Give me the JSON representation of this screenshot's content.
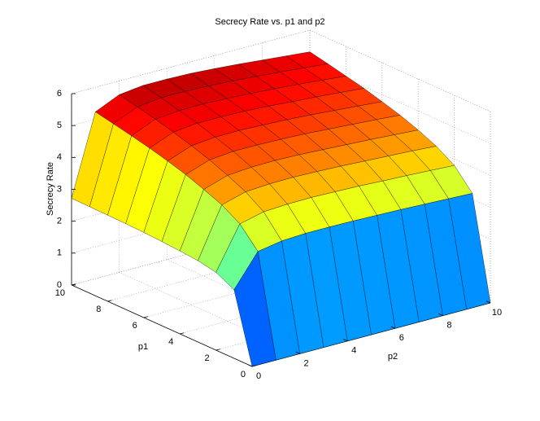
{
  "chart_data": {
    "type": "surface",
    "title": "Secrecy Rate vs. p1 and p2",
    "xlabel": "p2",
    "ylabel": "p1",
    "zlabel": "Secrecy Rate",
    "x": [
      0,
      1,
      2,
      3,
      4,
      5,
      6,
      7,
      8,
      9,
      10
    ],
    "y": [
      0,
      1,
      2,
      3,
      4,
      5,
      6,
      7,
      8,
      9,
      10
    ],
    "z": [
      [
        0,
        0,
        0,
        0,
        0,
        0,
        0,
        0,
        0,
        0,
        0
      ],
      [
        2.15,
        3.15,
        3.28,
        3.32,
        3.32,
        3.31,
        3.29,
        3.27,
        3.24,
        3.21,
        3.18
      ],
      [
        2.44,
        3.76,
        3.94,
        3.98,
        3.99,
        3.97,
        3.95,
        3.91,
        3.88,
        3.84,
        3.8
      ],
      [
        2.55,
        4.1,
        4.31,
        4.36,
        4.37,
        4.35,
        4.32,
        4.28,
        4.24,
        4.2,
        4.15
      ],
      [
        2.6,
        4.33,
        4.57,
        4.63,
        4.64,
        4.62,
        4.58,
        4.54,
        4.5,
        4.45,
        4.4
      ],
      [
        2.64,
        4.54,
        4.8,
        4.87,
        4.87,
        4.85,
        4.82,
        4.77,
        4.72,
        4.67,
        4.61
      ],
      [
        2.67,
        4.71,
        4.99,
        5.06,
        5.07,
        5.04,
        5.01,
        4.96,
        4.9,
        4.84,
        4.78
      ],
      [
        2.69,
        4.86,
        5.16,
        5.24,
        5.24,
        5.22,
        5.18,
        5.12,
        5.07,
        5.01,
        4.94
      ],
      [
        2.7,
        4.99,
        5.31,
        5.38,
        5.39,
        5.36,
        5.32,
        5.27,
        5.21,
        5.14,
        5.07
      ],
      [
        2.71,
        5.11,
        5.44,
        5.53,
        5.53,
        5.5,
        5.46,
        5.4,
        5.34,
        5.27,
        5.2
      ],
      [
        2.72,
        5.23,
        5.57,
        5.66,
        5.66,
        5.64,
        5.59,
        5.53,
        5.46,
        5.39,
        5.32
      ]
    ],
    "xlim": [
      0,
      10
    ],
    "ylim": [
      0,
      10
    ],
    "zlim": [
      0,
      6
    ],
    "xticks": [
      0,
      2,
      4,
      6,
      8,
      10
    ],
    "yticks": [
      0,
      2,
      4,
      6,
      8,
      10
    ],
    "zticks": [
      0,
      1,
      2,
      3,
      4,
      5,
      6
    ],
    "colormap": "jet",
    "grid": true
  }
}
